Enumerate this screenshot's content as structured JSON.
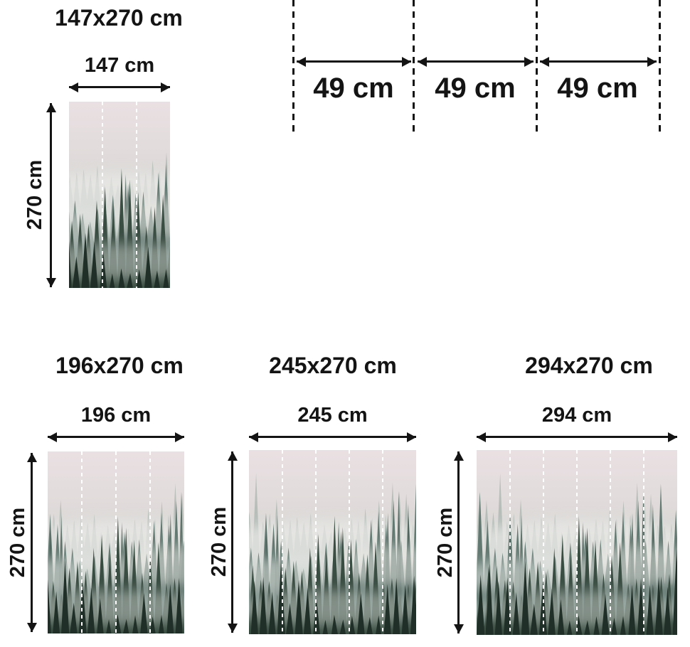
{
  "page": {
    "kind": "wall-mural-size-diagram",
    "text_color": "#141414",
    "background_color": "#ffffff"
  },
  "panel_diagram": {
    "segments": [
      {
        "label": "49 cm"
      },
      {
        "label": "49 cm"
      },
      {
        "label": "49 cm"
      }
    ]
  },
  "sizes": [
    {
      "title": "147x270 cm",
      "width_label": "147 cm",
      "height_label": "270 cm",
      "panels": 3
    },
    {
      "title": "196x270 cm",
      "width_label": "196 cm",
      "height_label": "270 cm",
      "panels": 4
    },
    {
      "title": "245x270 cm",
      "width_label": "245 cm",
      "height_label": "270 cm",
      "panels": 5
    },
    {
      "title": "294x270 cm",
      "width_label": "294 cm",
      "height_label": "270 cm",
      "panels": 6
    }
  ],
  "artwork": {
    "name": "foggy-pine-forest-photo",
    "cut_line_color": "#ffffff",
    "palette": {
      "sky_top": "#eae0e3",
      "sky_mid": "#d6d8d4",
      "fog": "#e9e8e6",
      "trees_far": "#8fa19a",
      "trees_mid": "#5c736b",
      "trees_near": "#36493f",
      "trees_front": "#202f27"
    }
  }
}
